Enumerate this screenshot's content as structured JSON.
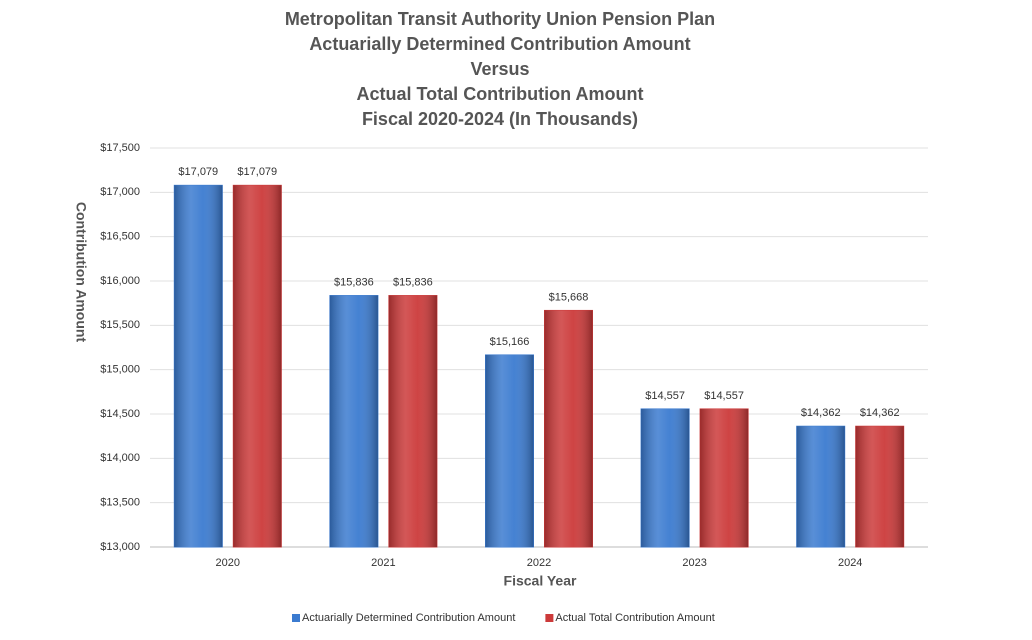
{
  "chart_data": {
    "type": "bar",
    "title": [
      "Metropolitan Transit Authority Union Pension Plan",
      "Actuarially Determined Contribution Amount",
      "Versus",
      "Actual Total Contribution Amount",
      "Fiscal 2020-2024 (In Thousands)"
    ],
    "x_label": "Fiscal Year",
    "y_label": "Contribution Amount",
    "categories": [
      "2020",
      "2021",
      "2022",
      "2023",
      "2024"
    ],
    "series": [
      {
        "name": "Actuarially Determined Contribution Amount",
        "color": "#3b7bd0",
        "values": [
          17079,
          15836,
          15166,
          14557,
          14362
        ],
        "value_labels": [
          "$17,079",
          "$15,836",
          "$15,166",
          "$14,557",
          "$14,362"
        ]
      },
      {
        "name": "Actual Total Contribution Amount",
        "color": "#cc3a3a",
        "values": [
          17079,
          15836,
          15668,
          14557,
          14362
        ],
        "value_labels": [
          "$17,079",
          "$15,836",
          "$15,668",
          "$14,557",
          "$14,362"
        ]
      }
    ],
    "ylim": [
      13000,
      17500
    ],
    "yticks": [
      {
        "value": 13000,
        "label": "$13,000"
      },
      {
        "value": 13500,
        "label": "$13,500"
      },
      {
        "value": 14000,
        "label": "$14,000"
      },
      {
        "value": 14500,
        "label": "$14,500"
      },
      {
        "value": 15000,
        "label": "$15,000"
      },
      {
        "value": 15500,
        "label": "$15,500"
      },
      {
        "value": 16000,
        "label": "$16,000"
      },
      {
        "value": 16500,
        "label": "$16,500"
      },
      {
        "value": 17000,
        "label": "$17,000"
      },
      {
        "value": 17500,
        "label": "$17,500"
      }
    ],
    "grid": true,
    "legend": "bottom"
  }
}
